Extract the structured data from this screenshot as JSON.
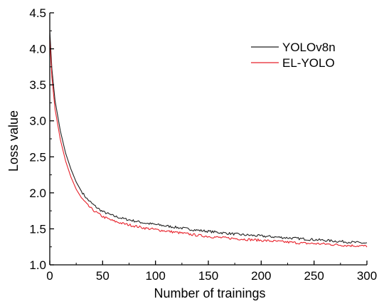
{
  "chart_data": {
    "type": "line",
    "title": "",
    "xlabel": "Number of trainings",
    "ylabel": "Loss value",
    "xlim": [
      0,
      300
    ],
    "ylim": [
      1.0,
      4.5
    ],
    "x_ticks": [
      "0",
      "50",
      "100",
      "150",
      "200",
      "250",
      "300"
    ],
    "y_ticks": [
      "1.0",
      "1.5",
      "2.0",
      "2.5",
      "3.0",
      "3.5",
      "4.0",
      "4.5"
    ],
    "grid": false,
    "legend_position": "top-right",
    "series": [
      {
        "name": "YOLOv8n",
        "color": "#222222",
        "x": [
          0,
          2,
          5,
          10,
          15,
          20,
          25,
          30,
          35,
          40,
          45,
          50,
          60,
          70,
          80,
          90,
          100,
          120,
          140,
          160,
          180,
          200,
          220,
          240,
          260,
          280,
          300
        ],
        "y": [
          4.25,
          3.72,
          3.28,
          2.86,
          2.55,
          2.33,
          2.15,
          2.02,
          1.92,
          1.85,
          1.79,
          1.74,
          1.68,
          1.64,
          1.61,
          1.58,
          1.56,
          1.52,
          1.48,
          1.45,
          1.42,
          1.4,
          1.38,
          1.36,
          1.34,
          1.32,
          1.3
        ]
      },
      {
        "name": "EL-YOLO",
        "color": "#e8212a",
        "x": [
          0,
          2,
          5,
          10,
          15,
          20,
          25,
          30,
          35,
          40,
          45,
          50,
          60,
          70,
          80,
          90,
          100,
          120,
          140,
          160,
          180,
          200,
          220,
          240,
          260,
          280,
          300
        ],
        "y": [
          4.15,
          3.6,
          3.16,
          2.74,
          2.44,
          2.22,
          2.05,
          1.93,
          1.84,
          1.77,
          1.72,
          1.67,
          1.61,
          1.57,
          1.54,
          1.51,
          1.49,
          1.45,
          1.41,
          1.38,
          1.36,
          1.34,
          1.32,
          1.3,
          1.29,
          1.27,
          1.26
        ]
      }
    ]
  }
}
